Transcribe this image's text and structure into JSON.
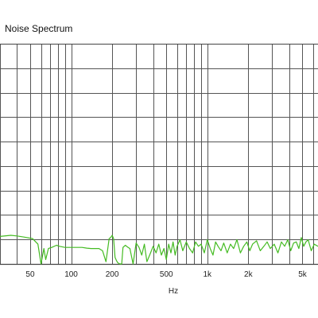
{
  "chart_data": {
    "type": "line",
    "title": "Noise Spectrum",
    "xlabel": "Hz",
    "ylabel": "",
    "x_scale": "log",
    "xlim": [
      30,
      6500
    ],
    "ylim": [
      0,
      1
    ],
    "grid": true,
    "x_ticks": [
      {
        "value": 50,
        "label": "50"
      },
      {
        "value": 100,
        "label": "100"
      },
      {
        "value": 200,
        "label": "200"
      },
      {
        "value": 500,
        "label": "500"
      },
      {
        "value": 1000,
        "label": "1k"
      },
      {
        "value": 2000,
        "label": "2k"
      },
      {
        "value": 5000,
        "label": "5k"
      }
    ],
    "series": [
      {
        "color": "#44bb22",
        "x": [
          30,
          36,
          40,
          45,
          52,
          57,
          60,
          63,
          65,
          68,
          72,
          78,
          82,
          90,
          100,
          110,
          120,
          130,
          140,
          150,
          160,
          170,
          180,
          190,
          195,
          200,
          205,
          210,
          215,
          220,
          228,
          235,
          240,
          250,
          255,
          262,
          270,
          285,
          300,
          315,
          330,
          345,
          360,
          380,
          400,
          420,
          440,
          460,
          480,
          500,
          520,
          540,
          560,
          580,
          600,
          630,
          660,
          700,
          740,
          780,
          820,
          860,
          900,
          950,
          1000,
          1050,
          1100,
          1150,
          1200,
          1260,
          1320,
          1400,
          1480,
          1560,
          1650,
          1750,
          1850,
          1950,
          2050,
          2150,
          2300,
          2450,
          2600,
          2750,
          2900,
          3100,
          3300,
          3500,
          3700,
          3900,
          4100,
          4300,
          4500,
          4700,
          4900,
          5100,
          5300,
          5500,
          5800,
          6100,
          6500
        ],
        "y": [
          0.125,
          0.13,
          0.127,
          0.122,
          0.115,
          0.09,
          0.0,
          0.07,
          0.02,
          0.07,
          0.075,
          0.085,
          0.08,
          0.075,
          0.075,
          0.075,
          0.075,
          0.072,
          0.07,
          0.07,
          0.07,
          0.06,
          0.01,
          0.115,
          0.12,
          0.13,
          0.115,
          0.03,
          0.015,
          0.005,
          0.0,
          0.0,
          0.075,
          0.085,
          0.08,
          0.075,
          0.07,
          0.0,
          0.095,
          0.075,
          0.04,
          0.09,
          0.01,
          0.045,
          0.08,
          0.05,
          0.09,
          0.04,
          0.07,
          0.02,
          0.09,
          0.05,
          0.1,
          0.04,
          0.08,
          0.11,
          0.06,
          0.1,
          0.07,
          0.05,
          0.1,
          0.08,
          0.09,
          0.05,
          0.11,
          0.07,
          0.04,
          0.1,
          0.08,
          0.06,
          0.095,
          0.05,
          0.09,
          0.07,
          0.11,
          0.05,
          0.08,
          0.1,
          0.06,
          0.09,
          0.105,
          0.06,
          0.08,
          0.1,
          0.07,
          0.09,
          0.05,
          0.1,
          0.08,
          0.11,
          0.06,
          0.095,
          0.1,
          0.07,
          0.12,
          0.08,
          0.1,
          0.11,
          0.06,
          0.09,
          0.08
        ]
      }
    ]
  }
}
